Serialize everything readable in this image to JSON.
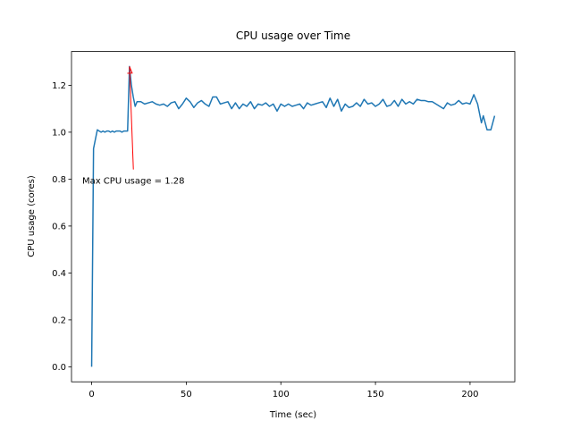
{
  "chart_data": {
    "type": "line",
    "title": "CPU usage over Time",
    "x_label": "Time (sec)",
    "y_label": "CPU usage (cores)",
    "x": [
      0,
      1,
      2,
      3,
      4,
      5,
      6,
      7,
      8,
      9,
      10,
      11,
      12,
      13,
      14,
      15,
      16,
      17,
      18,
      19,
      20,
      21,
      22,
      23,
      24,
      26,
      28,
      30,
      32,
      34,
      36,
      38,
      40,
      42,
      44,
      46,
      48,
      50,
      52,
      54,
      56,
      58,
      60,
      62,
      64,
      66,
      68,
      70,
      72,
      74,
      76,
      78,
      80,
      82,
      84,
      86,
      88,
      90,
      92,
      94,
      96,
      98,
      100,
      102,
      104,
      106,
      108,
      110,
      112,
      114,
      116,
      118,
      120,
      122,
      124,
      126,
      128,
      130,
      132,
      134,
      136,
      138,
      140,
      142,
      144,
      146,
      148,
      150,
      152,
      154,
      156,
      158,
      160,
      162,
      164,
      166,
      168,
      170,
      172,
      174,
      176,
      178,
      180,
      182,
      184,
      186,
      188,
      190,
      192,
      194,
      196,
      198,
      200,
      202,
      204,
      205,
      206,
      207,
      208,
      209,
      210,
      211,
      212,
      213
    ],
    "series": [
      {
        "color": "#1f77b4",
        "values": [
          0,
          0.93,
          0.97,
          1.01,
          1.005,
          1.0,
          1.005,
          1.0,
          1.005,
          1.005,
          1.0,
          1.005,
          1.0,
          1.005,
          1.005,
          1.005,
          1.0,
          1.005,
          1.005,
          1.005,
          1.28,
          1.2,
          1.15,
          1.11,
          1.13,
          1.13,
          1.12,
          1.125,
          1.13,
          1.12,
          1.115,
          1.12,
          1.11,
          1.125,
          1.13,
          1.1,
          1.12,
          1.145,
          1.13,
          1.105,
          1.125,
          1.135,
          1.12,
          1.11,
          1.15,
          1.15,
          1.12,
          1.125,
          1.13,
          1.1,
          1.125,
          1.1,
          1.12,
          1.11,
          1.13,
          1.1,
          1.12,
          1.115,
          1.125,
          1.11,
          1.12,
          1.09,
          1.12,
          1.11,
          1.12,
          1.11,
          1.115,
          1.12,
          1.1,
          1.125,
          1.115,
          1.12,
          1.125,
          1.13,
          1.105,
          1.145,
          1.11,
          1.14,
          1.09,
          1.12,
          1.105,
          1.11,
          1.125,
          1.11,
          1.14,
          1.12,
          1.125,
          1.11,
          1.12,
          1.14,
          1.11,
          1.115,
          1.135,
          1.11,
          1.14,
          1.12,
          1.13,
          1.12,
          1.14,
          1.135,
          1.135,
          1.13,
          1.13,
          1.12,
          1.11,
          1.1,
          1.125,
          1.115,
          1.12,
          1.135,
          1.12,
          1.125,
          1.12,
          1.16,
          1.12,
          1.08,
          1.04,
          1.07,
          1.04,
          1.01,
          1.01,
          1.01,
          1.04,
          1.07
        ]
      }
    ],
    "annotation": {
      "text": "Max CPU usage = 1.28",
      "color": "#ff0000",
      "xy": [
        20,
        1.28
      ],
      "xytext": [
        -5,
        0.78
      ]
    },
    "xlim": [
      -10.65,
      223.65
    ],
    "xticks": [
      0,
      50,
      100,
      150,
      200
    ],
    "ylim": [
      -0.064,
      1.344
    ],
    "yticks": [
      {
        "value": 0,
        "label": "0.0"
      },
      {
        "value": 0.2,
        "label": "0.2"
      },
      {
        "value": 0.4,
        "label": "0.4"
      },
      {
        "value": 0.6,
        "label": "0.6"
      },
      {
        "value": 0.8,
        "label": "0.8"
      },
      {
        "value": 1.0,
        "label": "1.0"
      },
      {
        "value": 1.2,
        "label": "1.2"
      }
    ]
  }
}
